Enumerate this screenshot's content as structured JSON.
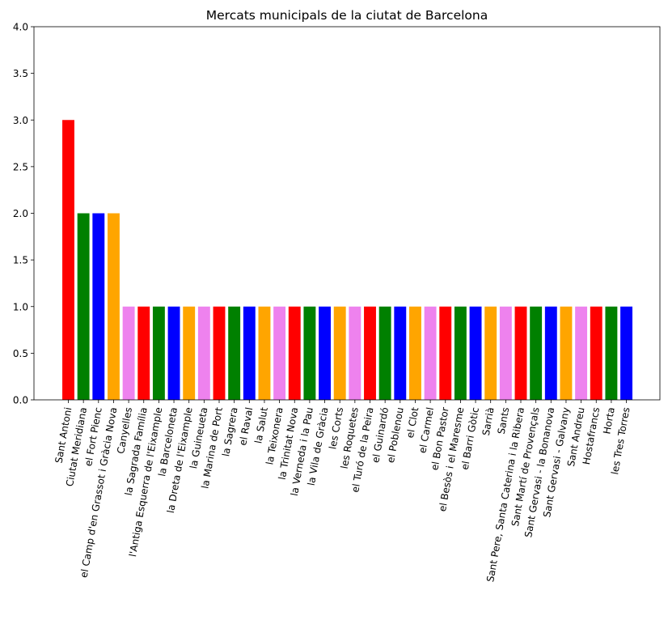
{
  "chart_data": {
    "type": "bar",
    "title": "Mercats municipals de la ciutat de Barcelona",
    "xlabel": "",
    "ylabel": "",
    "ylim": [
      0,
      4.0
    ],
    "yticks": [
      "0.0",
      "0.5",
      "1.0",
      "1.5",
      "2.0",
      "2.5",
      "3.0",
      "3.5",
      "4.0"
    ],
    "grid": false,
    "categories": [
      "Sant Antoni",
      "Ciutat Meridiana",
      "el Fort Pienc",
      "el Camp d'en Grassot i Gràcia Nova",
      "Canyelles",
      "la Sagrada Família",
      "l'Antiga Esquerra de l'Eixample",
      "la Barceloneta",
      "la Dreta de l'Eixample",
      "la Guineueta",
      "la Marina de Port",
      "la Sagrera",
      "el Raval",
      "la Salut",
      "la Teixonera",
      "la Trinitat Nova",
      "la Verneda i la Pau",
      "la Vila de Gràcia",
      "les Corts",
      "les Roquetes",
      "el Turó de la Peira",
      "el Guinardó",
      "el Poblenou",
      "el Clot",
      "el Carmel",
      "el Bon Pastor",
      "el Besòs i el Maresme",
      "el Barri Gòtic",
      "Sarrià",
      "Sants",
      "Sant Pere, Santa Caterina i la Ribera",
      "Sant Martí de Provençals",
      "Sant Gervasi - la Bonanova",
      "Sant Gervasi - Galvany",
      "Sant Andreu",
      "Hostafrancs",
      "Horta",
      "les Tres Torres"
    ],
    "values": [
      3,
      2,
      2,
      2,
      1,
      1,
      1,
      1,
      1,
      1,
      1,
      1,
      1,
      1,
      1,
      1,
      1,
      1,
      1,
      1,
      1,
      1,
      1,
      1,
      1,
      1,
      1,
      1,
      1,
      1,
      1,
      1,
      1,
      1,
      1,
      1,
      1,
      1
    ],
    "color_cycle": [
      "#ff0000",
      "#008000",
      "#0000ff",
      "#ffa500",
      "#ee82ee"
    ]
  }
}
